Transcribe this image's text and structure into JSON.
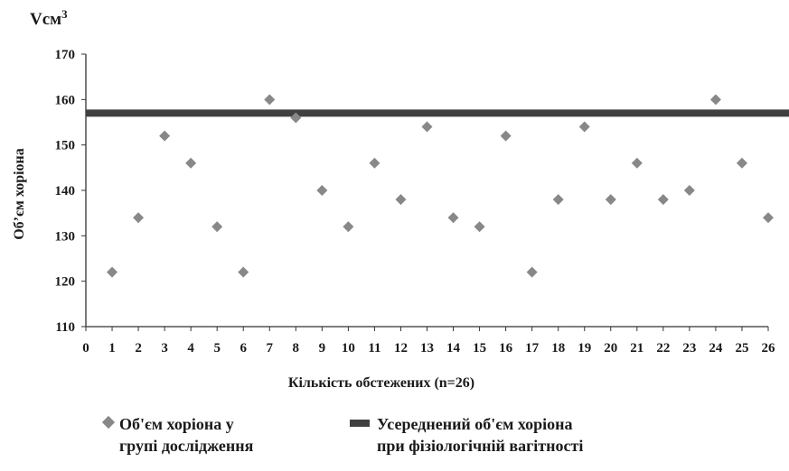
{
  "chart_data": {
    "type": "scatter",
    "unit_label": "Vсм",
    "unit_sup": "3",
    "ylabel": "Об’єм хоріона",
    "xlabel": "Кількість обстежених (n=26)",
    "xlim": [
      0,
      26
    ],
    "ylim": [
      110,
      170
    ],
    "yticks": [
      110,
      120,
      130,
      140,
      150,
      160,
      170
    ],
    "xticks": [
      0,
      1,
      2,
      3,
      4,
      5,
      6,
      7,
      8,
      9,
      10,
      11,
      12,
      13,
      14,
      15,
      16,
      17,
      18,
      19,
      20,
      21,
      22,
      23,
      24,
      25,
      26
    ],
    "grid": false,
    "series": [
      {
        "name": "Об'єм хоріона у групі дослідження",
        "marker": "diamond",
        "color": "#888888",
        "x": [
          1,
          2,
          3,
          4,
          5,
          6,
          7,
          8,
          9,
          10,
          11,
          12,
          13,
          14,
          15,
          16,
          17,
          18,
          19,
          20,
          21,
          22,
          23,
          24,
          25,
          26
        ],
        "y": [
          122,
          134,
          152,
          146,
          132,
          122,
          160,
          156,
          140,
          132,
          146,
          138,
          154,
          134,
          132,
          152,
          122,
          138,
          154,
          138,
          146,
          138,
          140,
          160,
          146,
          134
        ]
      },
      {
        "name": "Усереднений об'єм хоріона при фізіологічній вагітності",
        "type": "line",
        "color": "#404040",
        "y_value": 157
      }
    ],
    "legend_position": "bottom"
  },
  "legend": {
    "scatter_line1": "Об'єм хоріона у",
    "scatter_line2": "групі дослідження",
    "ref_line1": "Усереднений об'єм хоріона",
    "ref_line2": "при фізіологічній вагітності"
  }
}
